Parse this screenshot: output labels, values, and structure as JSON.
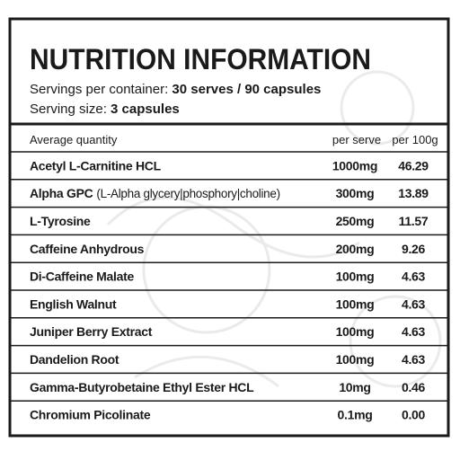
{
  "header": {
    "title": "NUTRITION INFORMATION",
    "servings_label": "Servings per container:",
    "servings_value": "30 serves / 90 capsules",
    "size_label": "Serving size:",
    "size_value": "3 capsules"
  },
  "table": {
    "columns": [
      "Average quantity",
      "per serve",
      "per 100g"
    ],
    "rows": [
      {
        "name": "Acetyl L-Carnitine HCL",
        "per_serve": "1000mg",
        "per_100g": "46.29"
      },
      {
        "name": "Alpha GPC",
        "note": "(L-Alpha glycery|phosphory|choline)",
        "per_serve": "300mg",
        "per_100g": "13.89"
      },
      {
        "name": "L-Tyrosine",
        "per_serve": "250mg",
        "per_100g": "11.57"
      },
      {
        "name": "Caffeine Anhydrous",
        "per_serve": "200mg",
        "per_100g": "9.26"
      },
      {
        "name": "Di-Caffeine Malate",
        "per_serve": "100mg",
        "per_100g": "4.63"
      },
      {
        "name": "English Walnut",
        "per_serve": "100mg",
        "per_100g": "4.63"
      },
      {
        "name": "Juniper Berry Extract",
        "per_serve": "100mg",
        "per_100g": "4.63"
      },
      {
        "name": "Dandelion Root",
        "per_serve": "100mg",
        "per_100g": "4.63"
      },
      {
        "name": "Gamma-Butyrobetaine Ethyl Ester HCL",
        "per_serve": "10mg",
        "per_100g": "0.46"
      },
      {
        "name": "Chromium Picolinate",
        "per_serve": "0.1mg",
        "per_100g": "0.00"
      }
    ]
  }
}
